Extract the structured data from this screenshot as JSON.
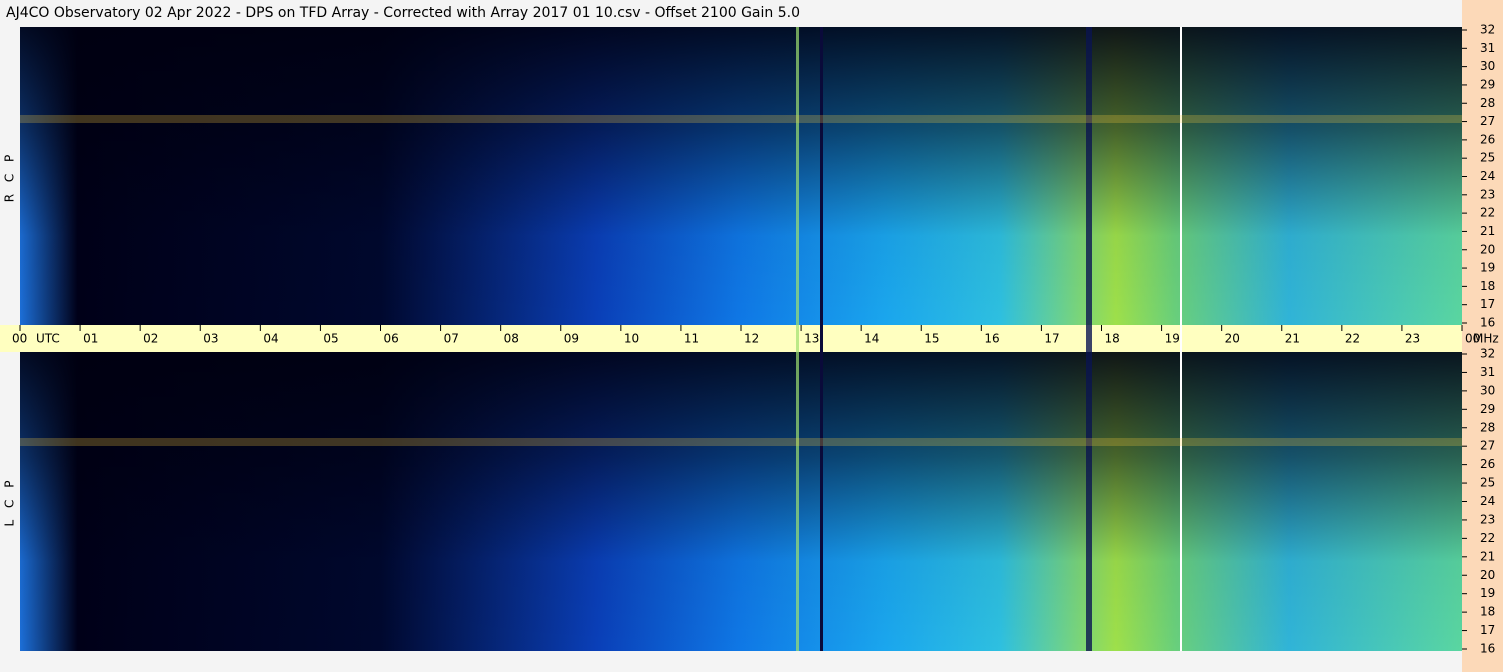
{
  "chart_data": {
    "type": "spectrogram",
    "title": "AJ4CO Observatory  02 Apr 2022  -  DPS on TFD Array  -  Corrected with Array 2017 01 10.csv  -  Offset 2100  Gain 5.0",
    "panels": [
      {
        "label": "R C P"
      },
      {
        "label": "L C P"
      }
    ],
    "x_unit": "UTC",
    "y_unit": "MHz",
    "xlim": [
      0,
      24
    ],
    "xticks": [
      {
        "value": 0,
        "label": "00"
      },
      {
        "value": 1,
        "label": "01"
      },
      {
        "value": 2,
        "label": "02"
      },
      {
        "value": 3,
        "label": "03"
      },
      {
        "value": 4,
        "label": "04"
      },
      {
        "value": 5,
        "label": "05"
      },
      {
        "value": 6,
        "label": "06"
      },
      {
        "value": 7,
        "label": "07"
      },
      {
        "value": 8,
        "label": "08"
      },
      {
        "value": 9,
        "label": "09"
      },
      {
        "value": 10,
        "label": "10"
      },
      {
        "value": 11,
        "label": "11"
      },
      {
        "value": 12,
        "label": "12"
      },
      {
        "value": 13,
        "label": "13"
      },
      {
        "value": 14,
        "label": "14"
      },
      {
        "value": 15,
        "label": "15"
      },
      {
        "value": 16,
        "label": "16"
      },
      {
        "value": 17,
        "label": "17"
      },
      {
        "value": 18,
        "label": "18"
      },
      {
        "value": 19,
        "label": "19"
      },
      {
        "value": 20,
        "label": "20"
      },
      {
        "value": 21,
        "label": "21"
      },
      {
        "value": 22,
        "label": "22"
      },
      {
        "value": 23,
        "label": "23"
      },
      {
        "value": 24,
        "label": "00"
      }
    ],
    "ylim": [
      16,
      32
    ],
    "yticks": [
      16,
      17,
      18,
      19,
      20,
      21,
      22,
      23,
      24,
      25,
      26,
      27,
      28,
      29,
      30,
      31,
      32
    ]
  }
}
